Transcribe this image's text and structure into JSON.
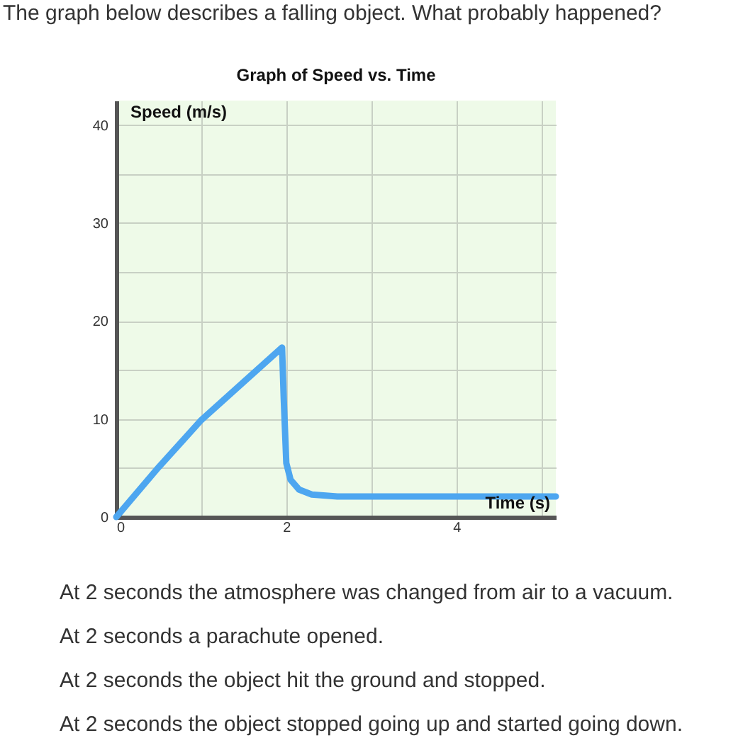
{
  "chart_data": {
    "type": "line",
    "title": "The graph below describes a falling object. What probably happened?",
    "subtitle": "Graph of Speed vs. Time",
    "xlabel": "Time (s)",
    "ylabel": "Speed (m/s)",
    "x": [
      0,
      0.5,
      1,
      1.5,
      1.95,
      1.97,
      2.0,
      2.05,
      2.15,
      2.3,
      2.6,
      3.5,
      5.17
    ],
    "series": [
      {
        "color": "#4da6f0",
        "values": [
          0,
          5.1,
          9.9,
          13.8,
          17.3,
          12,
          5.5,
          3.8,
          2.8,
          2.3,
          2.1,
          2.1,
          2.1
        ]
      }
    ],
    "xlim": [
      0,
      5.17
    ],
    "ylim": [
      0,
      42.5
    ],
    "xticks": [
      0,
      {
        "value": 1,
        "label": null
      },
      2,
      {
        "value": 3,
        "label": null
      },
      4,
      {
        "value": 5,
        "label": null
      }
    ],
    "yticks": [
      0,
      {
        "value": 5,
        "label": null
      },
      10,
      {
        "value": 15,
        "label": null
      },
      20,
      {
        "value": 25,
        "label": null
      },
      30,
      {
        "value": 35,
        "label": null
      },
      40
    ],
    "grid": true,
    "marker": "none",
    "line_style": "solid",
    "annotations": [
      "At 2 seconds the atmosphere was changed from air to a vacuum.",
      "At 2 seconds a parachute opened.",
      "At 2 seconds the object hit the ground and stopped.",
      "At 2 seconds the object stopped going up and started going down."
    ]
  }
}
